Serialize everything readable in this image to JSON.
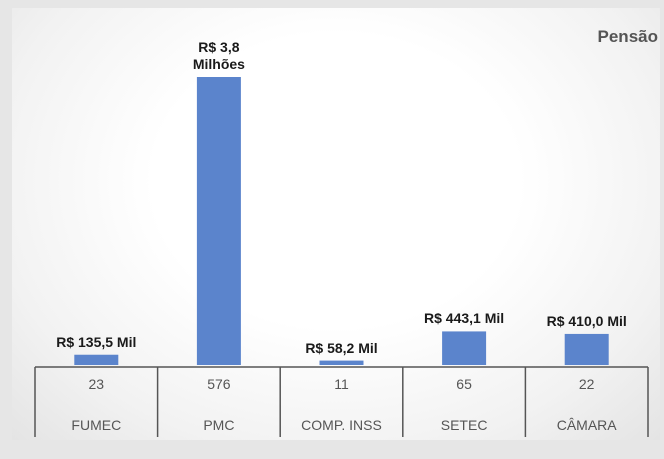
{
  "chart_data": {
    "type": "bar",
    "title": "Pensão",
    "categories": [
      "FUMEC",
      "PMC",
      "COMP. INSS",
      "SETEC",
      "CÂMARA"
    ],
    "counts": [
      23,
      576,
      11,
      65,
      22
    ],
    "values": [
      135500,
      3800000,
      58200,
      443100,
      410000
    ],
    "value_labels": [
      "R$ 135,5 Mil",
      "R$ 3,8\nMilhões",
      "R$ 58,2 Mil",
      "R$ 443,1 Mil",
      "R$ 410,0 Mil"
    ],
    "color": "#5b84cc"
  }
}
